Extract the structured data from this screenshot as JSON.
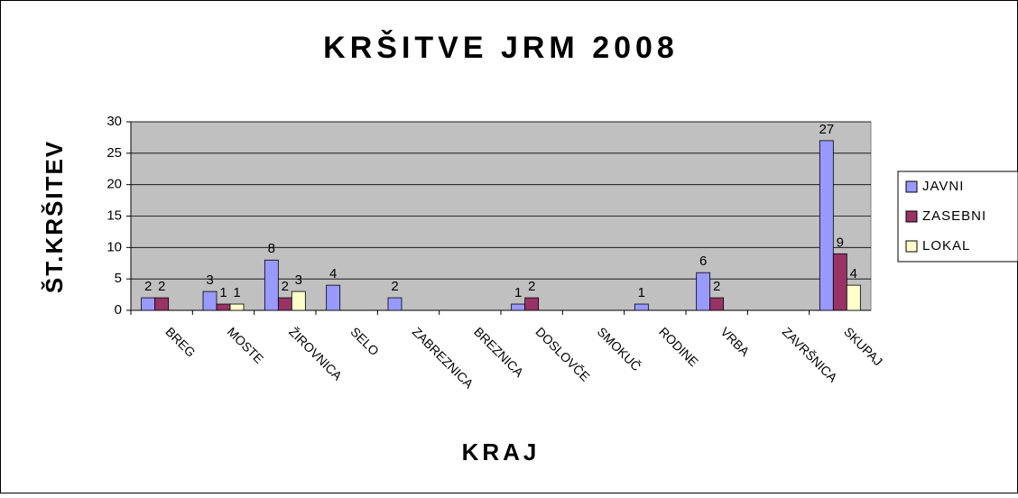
{
  "chart_data": {
    "type": "bar",
    "title": "KRŠITVE JRM 2008",
    "x_label": "KRAJ",
    "y_label": "ŠT.KRŠITEV",
    "categories": [
      "BREG",
      "MOSTE",
      "ŽIROVNICA",
      "SELO",
      "ZABREZNICA",
      "BREZNICA",
      "DOSLOVČE",
      "SMOKUČ",
      "RODINE",
      "VRBA",
      "ZAVRŠNICA",
      "SKUPAJ"
    ],
    "series": [
      {
        "name": "JAVNI",
        "color": "#9999ff",
        "values": [
          2,
          3,
          8,
          4,
          2,
          null,
          1,
          null,
          1,
          6,
          null,
          27
        ]
      },
      {
        "name": "ZASEBNI",
        "color": "#993366",
        "values": [
          2,
          1,
          2,
          null,
          null,
          null,
          2,
          null,
          null,
          2,
          null,
          9
        ]
      },
      {
        "name": "LOKAL",
        "color": "#ffffcc",
        "values": [
          null,
          1,
          3,
          null,
          null,
          null,
          null,
          null,
          null,
          null,
          null,
          4
        ]
      }
    ],
    "ylim": [
      0,
      30
    ],
    "yticks": [
      0,
      5,
      10,
      15,
      20,
      25,
      30
    ],
    "grid": true,
    "legend": "right"
  }
}
